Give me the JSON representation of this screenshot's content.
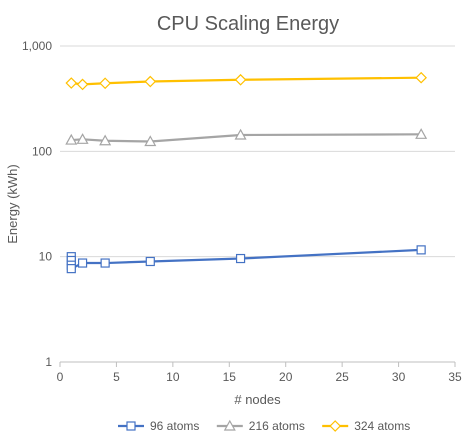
{
  "chart_data": {
    "type": "line",
    "title": "CPU Scaling Energy",
    "xlabel": "# nodes",
    "ylabel": "Energy (kWh)",
    "xlim": [
      0,
      35
    ],
    "x_ticks": [
      0,
      5,
      10,
      15,
      20,
      25,
      30,
      35
    ],
    "ylim": [
      1,
      1000
    ],
    "y_scale": "log",
    "y_ticks": [
      1,
      10,
      100,
      1000
    ],
    "y_tick_labels": [
      "1",
      "10",
      "100",
      "1,000"
    ],
    "grid": "horizontal",
    "legend_position": "bottom",
    "series": [
      {
        "name": "96 atoms",
        "color": "#4472c4",
        "marker": "square",
        "x": [
          1,
          1,
          1,
          1,
          2,
          4,
          8,
          16,
          32
        ],
        "y": [
          10,
          9.2,
          8.3,
          7.7,
          8.7,
          8.7,
          9.0,
          9.6,
          11.6
        ]
      },
      {
        "name": "216 atoms",
        "color": "#a5a5a5",
        "marker": "triangle",
        "x": [
          1,
          2,
          4,
          8,
          16,
          32
        ],
        "y": [
          128,
          130,
          126,
          124,
          143,
          145
        ]
      },
      {
        "name": "324 atoms",
        "color": "#ffc000",
        "marker": "diamond",
        "x": [
          1,
          2,
          4,
          8,
          16,
          32
        ],
        "y": [
          445,
          432,
          443,
          460,
          478,
          500
        ]
      }
    ]
  }
}
